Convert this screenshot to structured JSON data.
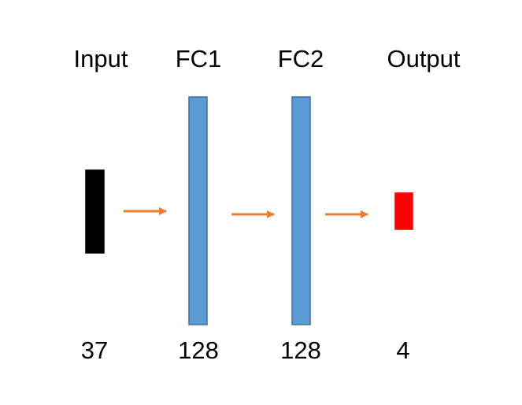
{
  "layers": [
    {
      "name": "Input",
      "size": "37",
      "color": "#000000",
      "border": "#000000"
    },
    {
      "name": "FC1",
      "size": "128",
      "color": "#5b9bd5",
      "border": "#41719c"
    },
    {
      "name": "FC2",
      "size": "128",
      "color": "#5b9bd5",
      "border": "#41719c"
    },
    {
      "name": "Output",
      "size": "4",
      "color": "#ff0000",
      "border": "#ff0000"
    }
  ],
  "arrow_color": "#ed7d31"
}
